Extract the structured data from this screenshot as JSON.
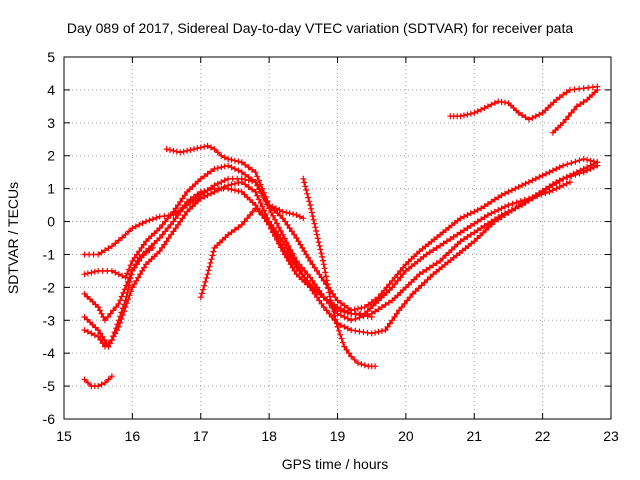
{
  "chart_data": {
    "type": "scatter",
    "title": "Day 089 of 2017, Sidereal Day-to-day VTEC variation (SDTVAR) for receiver pata",
    "xlabel": "GPS time / hours",
    "ylabel": "SDTVAR / TECUs",
    "xlim": [
      15,
      23
    ],
    "ylim": [
      -6,
      5
    ],
    "xticks": [
      15,
      16,
      17,
      18,
      19,
      20,
      21,
      22,
      23
    ],
    "yticks": [
      -6,
      -5,
      -4,
      -3,
      -2,
      -1,
      0,
      1,
      2,
      3,
      4,
      5
    ],
    "grid": true,
    "marker": "plus",
    "color": "#ff0000",
    "series": [
      {
        "name": "s1",
        "points": [
          [
            15.3,
            -1.0
          ],
          [
            15.5,
            -1.0
          ],
          [
            15.7,
            -0.75
          ],
          [
            15.9,
            -0.4
          ],
          [
            16.0,
            -0.2
          ],
          [
            16.2,
            0.0
          ],
          [
            16.4,
            0.15
          ],
          [
            16.6,
            0.2
          ],
          [
            16.8,
            0.5
          ],
          [
            17.0,
            0.8
          ],
          [
            17.2,
            1.1
          ],
          [
            17.4,
            1.3
          ],
          [
            17.6,
            1.3
          ],
          [
            17.8,
            1.2
          ],
          [
            18.0,
            0.5
          ],
          [
            18.2,
            0.1
          ],
          [
            18.4,
            -0.5
          ],
          [
            18.6,
            -1.2
          ],
          [
            18.8,
            -1.8
          ],
          [
            19.0,
            -2.4
          ],
          [
            19.2,
            -2.7
          ],
          [
            19.4,
            -2.6
          ],
          [
            19.6,
            -2.3
          ],
          [
            19.8,
            -1.8
          ],
          [
            20.0,
            -1.3
          ],
          [
            20.2,
            -0.9
          ],
          [
            20.5,
            -0.4
          ],
          [
            20.8,
            0.1
          ],
          [
            21.1,
            0.4
          ],
          [
            21.4,
            0.8
          ],
          [
            21.7,
            1.1
          ],
          [
            22.0,
            1.4
          ],
          [
            22.3,
            1.7
          ],
          [
            22.6,
            1.9
          ],
          [
            22.8,
            1.8
          ]
        ]
      },
      {
        "name": "s2",
        "points": [
          [
            15.3,
            -1.6
          ],
          [
            15.5,
            -1.5
          ],
          [
            15.7,
            -1.5
          ],
          [
            15.9,
            -1.7
          ],
          [
            16.0,
            -1.2
          ],
          [
            16.2,
            -0.6
          ],
          [
            16.4,
            -0.2
          ],
          [
            16.6,
            0.3
          ],
          [
            16.8,
            0.9
          ],
          [
            17.0,
            1.3
          ],
          [
            17.2,
            1.6
          ],
          [
            17.4,
            1.7
          ],
          [
            17.6,
            1.5
          ],
          [
            17.8,
            1.2
          ],
          [
            18.0,
            0.4
          ],
          [
            18.2,
            -0.4
          ],
          [
            18.4,
            -1.2
          ],
          [
            18.6,
            -1.7
          ],
          [
            18.8,
            -2.3
          ],
          [
            19.0,
            -2.8
          ],
          [
            19.2,
            -3.0
          ],
          [
            19.5,
            -2.8
          ],
          [
            19.8,
            -2.4
          ],
          [
            20.0,
            -2.0
          ],
          [
            20.2,
            -1.6
          ],
          [
            20.5,
            -1.2
          ],
          [
            20.8,
            -0.6
          ],
          [
            21.1,
            -0.2
          ],
          [
            21.4,
            0.2
          ],
          [
            21.7,
            0.5
          ],
          [
            22.0,
            0.9
          ],
          [
            22.3,
            1.3
          ],
          [
            22.6,
            1.5
          ],
          [
            22.8,
            1.7
          ]
        ]
      },
      {
        "name": "s3",
        "points": [
          [
            15.3,
            -2.9
          ],
          [
            15.5,
            -3.3
          ],
          [
            15.65,
            -3.8
          ],
          [
            15.8,
            -3.2
          ],
          [
            16.0,
            -2.0
          ],
          [
            16.2,
            -1.3
          ],
          [
            16.4,
            -0.9
          ],
          [
            16.6,
            -0.3
          ],
          [
            16.8,
            0.3
          ],
          [
            17.0,
            0.7
          ],
          [
            17.2,
            0.9
          ],
          [
            17.4,
            1.1
          ],
          [
            17.6,
            1.2
          ],
          [
            17.8,
            0.9
          ],
          [
            18.0,
            0.0
          ],
          [
            18.2,
            -0.6
          ],
          [
            18.4,
            -1.3
          ],
          [
            18.6,
            -2.0
          ],
          [
            18.8,
            -2.6
          ],
          [
            19.0,
            -3.1
          ],
          [
            19.2,
            -3.3
          ],
          [
            19.5,
            -3.4
          ],
          [
            19.7,
            -3.3
          ],
          [
            19.9,
            -2.7
          ],
          [
            20.1,
            -2.2
          ],
          [
            20.4,
            -1.6
          ],
          [
            20.7,
            -1.1
          ],
          [
            21.0,
            -0.6
          ],
          [
            21.3,
            0.0
          ],
          [
            21.6,
            0.4
          ],
          [
            21.9,
            0.8
          ],
          [
            22.2,
            1.2
          ],
          [
            22.5,
            1.5
          ],
          [
            22.8,
            1.8
          ]
        ]
      },
      {
        "name": "s4",
        "points": [
          [
            15.3,
            -3.3
          ],
          [
            15.5,
            -3.5
          ],
          [
            15.6,
            -3.8
          ],
          [
            15.7,
            -3.6
          ],
          [
            15.9,
            -2.4
          ],
          [
            16.0,
            -1.5
          ],
          [
            16.2,
            -0.9
          ],
          [
            16.4,
            -0.5
          ],
          [
            16.6,
            0.0
          ],
          [
            16.8,
            0.6
          ],
          [
            17.0,
            0.9
          ],
          [
            17.2,
            1.0
          ],
          [
            17.4,
            1.0
          ],
          [
            17.6,
            0.9
          ],
          [
            17.8,
            0.5
          ],
          [
            18.0,
            -0.1
          ],
          [
            18.2,
            -0.9
          ],
          [
            18.4,
            -1.6
          ],
          [
            18.6,
            -2.0
          ],
          [
            18.8,
            -2.3
          ],
          [
            19.0,
            -2.7
          ],
          [
            19.2,
            -2.8
          ],
          [
            19.4,
            -2.8
          ],
          [
            19.6,
            -2.4
          ],
          [
            19.8,
            -2.0
          ],
          [
            20.0,
            -1.5
          ],
          [
            20.3,
            -1.0
          ],
          [
            20.6,
            -0.6
          ],
          [
            20.9,
            -0.2
          ],
          [
            21.2,
            0.2
          ],
          [
            21.5,
            0.5
          ],
          [
            21.8,
            0.7
          ],
          [
            22.1,
            0.9
          ],
          [
            22.4,
            1.2
          ]
        ]
      },
      {
        "name": "s5",
        "points": [
          [
            15.3,
            -2.2
          ],
          [
            15.5,
            -2.6
          ],
          [
            15.6,
            -3.0
          ],
          [
            15.8,
            -2.5
          ],
          [
            16.0,
            -1.5
          ],
          [
            16.1,
            -1.1
          ],
          [
            16.3,
            -0.8
          ]
        ]
      },
      {
        "name": "s6",
        "points": [
          [
            15.3,
            -4.8
          ],
          [
            15.4,
            -5.0
          ],
          [
            15.5,
            -5.0
          ],
          [
            15.6,
            -4.9
          ],
          [
            15.7,
            -4.7
          ]
        ]
      },
      {
        "name": "s7",
        "points": [
          [
            16.5,
            2.2
          ],
          [
            16.7,
            2.1
          ],
          [
            16.9,
            2.2
          ],
          [
            17.1,
            2.3
          ],
          [
            17.2,
            2.2
          ],
          [
            17.3,
            2.0
          ],
          [
            17.4,
            1.9
          ],
          [
            17.6,
            1.8
          ],
          [
            17.8,
            1.5
          ],
          [
            17.9,
            1.0
          ],
          [
            18.0,
            0.5
          ],
          [
            18.2,
            0.3
          ],
          [
            18.4,
            0.2
          ],
          [
            18.5,
            0.1
          ]
        ]
      },
      {
        "name": "s8",
        "points": [
          [
            17.0,
            -2.3
          ],
          [
            17.1,
            -1.6
          ],
          [
            17.2,
            -0.8
          ],
          [
            17.4,
            -0.4
          ],
          [
            17.6,
            -0.1
          ],
          [
            17.8,
            0.4
          ],
          [
            17.9,
            0.2
          ],
          [
            18.0,
            -0.1
          ],
          [
            18.2,
            -0.8
          ],
          [
            18.4,
            -1.4
          ],
          [
            18.6,
            -1.9
          ],
          [
            18.8,
            -2.3
          ],
          [
            19.0,
            -2.6
          ],
          [
            19.2,
            -2.8
          ],
          [
            19.5,
            -2.9
          ]
        ]
      },
      {
        "name": "s9",
        "points": [
          [
            18.5,
            1.3
          ],
          [
            18.6,
            0.5
          ],
          [
            18.7,
            -0.4
          ],
          [
            18.8,
            -1.3
          ],
          [
            18.9,
            -2.4
          ],
          [
            19.0,
            -3.2
          ],
          [
            19.1,
            -3.8
          ],
          [
            19.2,
            -4.1
          ],
          [
            19.3,
            -4.3
          ],
          [
            19.45,
            -4.4
          ],
          [
            19.55,
            -4.4
          ]
        ]
      },
      {
        "name": "s10",
        "points": [
          [
            20.65,
            3.2
          ],
          [
            20.8,
            3.2
          ],
          [
            21.0,
            3.3
          ],
          [
            21.2,
            3.5
          ],
          [
            21.35,
            3.65
          ],
          [
            21.5,
            3.6
          ],
          [
            21.65,
            3.3
          ],
          [
            21.8,
            3.1
          ],
          [
            22.0,
            3.3
          ],
          [
            22.2,
            3.7
          ],
          [
            22.4,
            4.0
          ],
          [
            22.6,
            4.05
          ],
          [
            22.8,
            4.1
          ]
        ]
      },
      {
        "name": "s11",
        "points": [
          [
            22.15,
            2.7
          ],
          [
            22.3,
            3.0
          ],
          [
            22.5,
            3.5
          ],
          [
            22.65,
            3.7
          ],
          [
            22.8,
            4.0
          ]
        ]
      }
    ]
  }
}
